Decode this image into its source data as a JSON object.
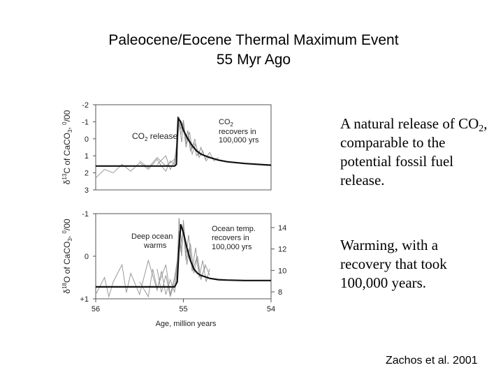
{
  "page": {
    "title_line1": "Paleocene/Eocene Thermal Maximum Event",
    "title_line2": "55 Myr Ago",
    "note1_pre": "A natural release of CO",
    "note1_sub": "2",
    "note1_post": ", comparable to the potential fossil fuel release.",
    "note2": "Warming, with a recovery that took 100,000 years.",
    "citation": "Zachos et al. 2001"
  },
  "colors": {
    "mean_line": "#111111",
    "record_lines": "#9a9a9a",
    "axes": "#555555"
  },
  "chart_data": [
    {
      "type": "line",
      "panel": "top",
      "ylabel_main": "δ",
      "ylabel_sup1": "13",
      "ylabel_mid": "C of CaCO",
      "ylabel_sub": "3",
      "ylabel_tail": ", ",
      "ylabel_sup2": "0",
      "ylabel_end": "/00",
      "y_inverted": true,
      "ylim": [
        -2,
        3
      ],
      "yticks": [
        "-2",
        "-1",
        "0",
        "1",
        "2",
        "3"
      ],
      "xlim": [
        56,
        54
      ],
      "annotation_release_pre": "CO",
      "annotation_release_sub": "2",
      "annotation_release_post": " release",
      "annotation_recover_pre": "CO",
      "annotation_recover_sub": "2",
      "annotation_recover_line2": "recovers in",
      "annotation_recover_line3": "100,000 yrs",
      "mean_series": {
        "x": [
          56,
          55.5,
          55.1,
          55.08,
          55.07,
          55.06,
          55.03,
          55.0,
          54.95,
          54.9,
          54.85,
          54.8,
          54.7,
          54.6,
          54.5,
          54.3,
          54.0
        ],
        "y": [
          1.6,
          1.6,
          1.6,
          1.5,
          0.0,
          -1.2,
          -1.0,
          -0.5,
          0.0,
          0.4,
          0.7,
          0.9,
          1.1,
          1.25,
          1.35,
          1.45,
          1.55
        ]
      },
      "record_series": [
        {
          "x": [
            56,
            55.9,
            55.8,
            55.7,
            55.6,
            55.5,
            55.4,
            55.3,
            55.25,
            55.2,
            55.15,
            55.1,
            55.07,
            55.05,
            55.03,
            55.0,
            54.97,
            54.93,
            54.9,
            54.87,
            54.83,
            54.8,
            54.75,
            54.7,
            54.65,
            54.6
          ],
          "y": [
            2.3,
            1.8,
            2.0,
            1.5,
            1.9,
            1.4,
            1.8,
            1.2,
            1.6,
            1.9,
            1.3,
            1.5,
            0.2,
            -1.3,
            -0.6,
            -0.9,
            0.3,
            -0.4,
            0.6,
            0.0,
            1.0,
            0.5,
            1.2,
            0.8,
            1.3,
            1.1
          ]
        },
        {
          "x": [
            55.5,
            55.4,
            55.3,
            55.2,
            55.1,
            55.07,
            55.05,
            55.02,
            55.0,
            54.97,
            54.94,
            54.9,
            54.86,
            54.82,
            54.78,
            54.74,
            54.7
          ],
          "y": [
            1.3,
            1.7,
            1.1,
            1.6,
            1.2,
            0.5,
            -1.0,
            0.2,
            -0.8,
            0.5,
            -0.2,
            0.9,
            0.3,
            1.1,
            0.7,
            1.3,
            1.0
          ]
        },
        {
          "x": [
            55.3,
            55.2,
            55.15,
            55.1,
            55.07,
            55.05,
            55.03,
            55.0,
            54.97,
            54.95,
            54.92,
            54.88,
            54.85,
            54.8
          ],
          "y": [
            1.5,
            1.0,
            1.8,
            1.3,
            0.0,
            -0.9,
            -0.2,
            -1.1,
            0.1,
            -0.5,
            0.7,
            0.2,
            1.0,
            0.6
          ]
        }
      ]
    },
    {
      "type": "line",
      "panel": "bottom",
      "ylabel_main": "δ",
      "ylabel_sup1": "18",
      "ylabel_mid": "O of CaCO",
      "ylabel_sub": "3",
      "ylabel_tail": ", ",
      "ylabel_sup2": "0",
      "ylabel_end": "/00",
      "y_inverted": true,
      "ylim": [
        -1,
        1
      ],
      "yticks": [
        "-1",
        "0",
        "+1"
      ],
      "y2ticks": [
        "14",
        "12",
        "10",
        "8"
      ],
      "xlim": [
        56,
        54
      ],
      "xticks": [
        "56",
        "55",
        "54"
      ],
      "xlabel": "Age, million years",
      "annotation_warm_line1": "Deep ocean",
      "annotation_warm_line2": "warms",
      "annotation_recover_line1": "Ocean temp.",
      "annotation_recover_line2": "recovers in",
      "annotation_recover_line3": "100,000 yrs",
      "mean_series": {
        "x": [
          56,
          55.5,
          55.1,
          55.07,
          55.05,
          55.03,
          55.0,
          54.96,
          54.92,
          54.88,
          54.84,
          54.8,
          54.7,
          54.6,
          54.5,
          54.3,
          54.0
        ],
        "y": [
          0.72,
          0.72,
          0.72,
          0.6,
          -0.2,
          -0.75,
          -0.55,
          -0.2,
          0.1,
          0.3,
          0.4,
          0.45,
          0.52,
          0.55,
          0.56,
          0.57,
          0.57
        ]
      },
      "record_series": [
        {
          "x": [
            56,
            55.9,
            55.85,
            55.8,
            55.7,
            55.65,
            55.6,
            55.5,
            55.45,
            55.4,
            55.3,
            55.25,
            55.2,
            55.15,
            55.1,
            55.07,
            55.05,
            55.02,
            55.0,
            54.97,
            54.94,
            54.9,
            54.86,
            54.82,
            54.78,
            54.74,
            54.7
          ],
          "y": [
            0.9,
            0.5,
            0.95,
            0.6,
            0.2,
            0.85,
            0.4,
            0.9,
            0.5,
            0.1,
            0.8,
            0.35,
            0.9,
            0.55,
            0.85,
            0.3,
            -0.9,
            -0.3,
            -0.7,
            0.0,
            -0.5,
            0.3,
            -0.2,
            0.5,
            0.1,
            0.6,
            0.3
          ]
        },
        {
          "x": [
            55.5,
            55.4,
            55.35,
            55.3,
            55.2,
            55.15,
            55.1,
            55.07,
            55.05,
            55.02,
            55.0,
            54.96,
            54.92,
            54.88,
            54.84,
            54.8,
            54.75,
            54.7
          ],
          "y": [
            0.6,
            0.95,
            0.3,
            0.75,
            0.2,
            0.9,
            0.5,
            0.1,
            -0.6,
            0.0,
            -0.85,
            0.2,
            -0.3,
            0.4,
            0.0,
            0.55,
            0.2,
            0.45
          ]
        },
        {
          "x": [
            55.3,
            55.25,
            55.2,
            55.15,
            55.1,
            55.07,
            55.05,
            55.03,
            55.0,
            54.97,
            54.93,
            54.9,
            54.85,
            54.8,
            54.75
          ],
          "y": [
            0.3,
            0.85,
            0.45,
            0.95,
            0.6,
            0.2,
            -0.5,
            -0.1,
            -0.6,
            0.1,
            -0.2,
            0.35,
            0.05,
            0.5,
            0.25
          ]
        }
      ]
    }
  ]
}
